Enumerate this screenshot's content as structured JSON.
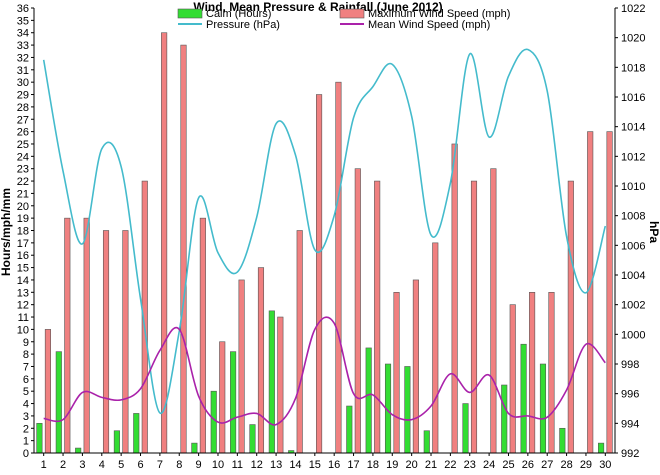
{
  "chart_data": {
    "type": "bar",
    "title": "Wind, Mean Pressure & Rainfall (June 2012)",
    "ylabel_left": "Hours/mph/mm",
    "ylabel_right": "hPa",
    "xlabel": "",
    "ylim_left": [
      0,
      36
    ],
    "ylim_right": [
      992,
      1022
    ],
    "y_left_ticks": [
      0,
      1,
      2,
      3,
      4,
      5,
      6,
      7,
      8,
      9,
      10,
      11,
      12,
      13,
      14,
      15,
      16,
      17,
      18,
      19,
      20,
      21,
      22,
      23,
      24,
      25,
      26,
      27,
      28,
      29,
      30,
      31,
      32,
      33,
      34,
      35,
      36
    ],
    "y_right_ticks": [
      992,
      994,
      996,
      998,
      1000,
      1002,
      1004,
      1006,
      1008,
      1010,
      1012,
      1014,
      1016,
      1018,
      1020,
      1022
    ],
    "categories": [
      "1",
      "2",
      "3",
      "4",
      "5",
      "6",
      "7",
      "8",
      "9",
      "10",
      "11",
      "12",
      "13",
      "14",
      "15",
      "16",
      "17",
      "18",
      "19",
      "20",
      "21",
      "22",
      "23",
      "24",
      "25",
      "26",
      "27",
      "28",
      "29",
      "30"
    ],
    "grid": false,
    "legend_position": "top",
    "series": [
      {
        "name": "Calm (Hours)",
        "kind": "bar",
        "axis": "left",
        "color": "#33dd33",
        "values": [
          2.4,
          8.2,
          0.4,
          0,
          1.8,
          3.2,
          0,
          0,
          0.8,
          5.0,
          8.2,
          2.3,
          11.5,
          0.2,
          0,
          0,
          3.8,
          8.5,
          7.2,
          7.0,
          1.8,
          0,
          4.0,
          0,
          5.5,
          8.8,
          7.2,
          2.0,
          0,
          0.8
        ]
      },
      {
        "name": "Maximum Wind Speed (mph)",
        "kind": "bar",
        "axis": "left",
        "color": "#f08080",
        "values": [
          10,
          19,
          19,
          18,
          18,
          22,
          34,
          33,
          19,
          9,
          14,
          15,
          11,
          18,
          29,
          30,
          23,
          22,
          13,
          14,
          17,
          25,
          22,
          23,
          12,
          13,
          13,
          22,
          26,
          26
        ]
      },
      {
        "name": "Pressure (hPa)",
        "kind": "line",
        "axis": "right",
        "color": "#44bbcc",
        "values": [
          1018.5,
          1011,
          1006.1,
          1012.5,
          1011.3,
          1002.4,
          994.7,
          1000.2,
          1009.2,
          1005.5,
          1004.2,
          1007.9,
          1014.2,
          1012.1,
          1005.7,
          1008.0,
          1014.6,
          1016.7,
          1018.2,
          1014.7,
          1006.7,
          1010.2,
          1018.9,
          1013.3,
          1017.4,
          1019.2,
          1016.4,
          1006.6,
          1002.8,
          1007.3
        ]
      },
      {
        "name": "Mean Wind Speed (mph)",
        "kind": "line",
        "axis": "left",
        "color": "#aa22aa",
        "values": [
          2.8,
          2.7,
          4.9,
          4.5,
          4.3,
          5.2,
          8.3,
          10.0,
          4.6,
          2.5,
          2.9,
          3.2,
          2.3,
          4.4,
          10.0,
          10.5,
          4.8,
          4.7,
          3.1,
          2.7,
          3.8,
          6.4,
          4.9,
          6.3,
          3.2,
          3.0,
          2.9,
          5.1,
          8.8,
          7.3
        ]
      }
    ]
  }
}
